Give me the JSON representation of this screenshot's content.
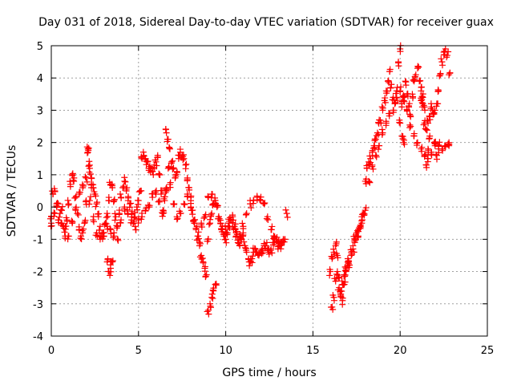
{
  "chart_data": {
    "type": "scatter",
    "title": "Day 031 of 2018, Sidereal Day-to-day VTEC variation (SDTVAR) for receiver guax",
    "xlabel": "GPS time / hours",
    "ylabel": "SDTVAR / TECUs",
    "xlim": [
      0,
      25
    ],
    "ylim": [
      -4,
      5
    ],
    "xticks": [
      "0",
      "5",
      "10",
      "15",
      "20",
      "25"
    ],
    "yticks": [
      "-4",
      "-3",
      "-2",
      "-1",
      "0",
      "1",
      "2",
      "3",
      "4",
      "5"
    ],
    "grid": true,
    "marker": "plus",
    "series": [
      {
        "name": "SDTVAR",
        "color": "#ff0000",
        "x": [
          0.0,
          0.1,
          0.2,
          0.3,
          0.4,
          0.5,
          0.6,
          0.7,
          0.8,
          0.9,
          1.0,
          1.1,
          1.2,
          1.3,
          1.4,
          1.5,
          1.6,
          1.7,
          1.8,
          1.9,
          2.0,
          2.1,
          2.2,
          2.3,
          2.4,
          2.5,
          2.6,
          2.7,
          2.8,
          2.9,
          3.0,
          3.1,
          3.2,
          3.3,
          3.4,
          3.5,
          3.6,
          3.7,
          3.8,
          3.9,
          4.0,
          4.1,
          4.2,
          4.3,
          4.4,
          4.5,
          4.6,
          4.7,
          4.8,
          4.9,
          5.0,
          5.1,
          5.2,
          5.3,
          5.4,
          5.5,
          5.6,
          5.7,
          5.8,
          5.9,
          6.0,
          6.1,
          6.2,
          6.3,
          6.4,
          6.5,
          6.6,
          6.7,
          6.8,
          6.9,
          7.0,
          7.1,
          7.2,
          7.3,
          7.4,
          7.5,
          7.6,
          7.7,
          7.8,
          7.9,
          8.0,
          8.1,
          8.2,
          8.3,
          8.4,
          8.5,
          8.6,
          8.7,
          8.8,
          8.9,
          9.0,
          9.1,
          9.2,
          9.3,
          9.4,
          9.5,
          9.6,
          9.7,
          9.8,
          9.9,
          10.0,
          10.1,
          10.2,
          10.3,
          10.4,
          10.5,
          10.6,
          10.7,
          10.8,
          10.9,
          11.0,
          11.1,
          11.2,
          11.3,
          11.4,
          11.5,
          11.6,
          11.7,
          11.8,
          11.9,
          12.0,
          12.1,
          12.2,
          12.3,
          12.4,
          12.5,
          12.6,
          12.7,
          12.8,
          12.9,
          13.0,
          13.1,
          13.2,
          13.3,
          13.4,
          0.0,
          0.2,
          0.4,
          0.6,
          0.8,
          1.0,
          1.2,
          1.4,
          1.6,
          1.8,
          2.0,
          2.2,
          2.4,
          2.6,
          2.8,
          3.0,
          3.2,
          3.4,
          3.6,
          3.8,
          4.0,
          4.2,
          4.4,
          4.6,
          4.8,
          5.0,
          5.2,
          5.4,
          5.6,
          5.8,
          6.0,
          6.2,
          6.4,
          6.6,
          6.8,
          7.0,
          7.2,
          7.4,
          7.6,
          7.8,
          8.0,
          8.2,
          8.4,
          8.6,
          8.8,
          9.0,
          9.2,
          9.4,
          9.6,
          9.8,
          10.0,
          10.2,
          10.4,
          10.6,
          10.8,
          11.0,
          11.2,
          11.4,
          11.6,
          11.8,
          12.0,
          12.2,
          12.4,
          12.6,
          12.8,
          13.0,
          13.2,
          2.1,
          2.2,
          2.3,
          3.2,
          3.3,
          3.4,
          3.5,
          6.6,
          6.7,
          9.0,
          9.1,
          9.2,
          9.3,
          9.4,
          13.5,
          16.0,
          16.1,
          16.2,
          16.3,
          16.4,
          16.5,
          16.6,
          16.7,
          16.8,
          16.9,
          17.0,
          17.1,
          17.2,
          17.3,
          17.4,
          17.5,
          17.6,
          17.7,
          17.8,
          17.9,
          18.0,
          18.1,
          18.2,
          18.3,
          18.4,
          18.5,
          18.6,
          18.7,
          18.8,
          18.9,
          19.0,
          19.1,
          19.2,
          19.3,
          19.4,
          19.5,
          19.6,
          19.7,
          19.8,
          19.9,
          20.0,
          20.1,
          20.2,
          20.3,
          20.4,
          20.5,
          20.6,
          20.7,
          20.8,
          20.9,
          21.0,
          21.1,
          21.2,
          21.3,
          21.4,
          21.5,
          21.6,
          21.7,
          21.8,
          21.9,
          22.0,
          22.1,
          22.2,
          22.3,
          22.4,
          22.5,
          22.6,
          22.7,
          22.8,
          16.1,
          16.2,
          16.3,
          16.4,
          16.5,
          16.6,
          16.7,
          16.8,
          16.9,
          17.0,
          17.2,
          17.4,
          17.6,
          17.8,
          18.0,
          18.2,
          18.4,
          18.6,
          18.8,
          19.0,
          19.2,
          19.4,
          19.6,
          19.8,
          20.0,
          20.2,
          20.4,
          20.6,
          20.8,
          21.0,
          21.2,
          21.4,
          21.6,
          21.8,
          22.0,
          22.2,
          22.4,
          22.6,
          22.8,
          20.0,
          20.1,
          20.2,
          21.5,
          21.6,
          21.7,
          22.0,
          22.1,
          22.2,
          22.8,
          21.3,
          21.4,
          21.2
        ],
        "y": [
          -0.3,
          0.4,
          0.5,
          0.1,
          -0.4,
          -0.2,
          -0.5,
          -0.6,
          -0.9,
          -0.4,
          0.1,
          0.7,
          1.0,
          0.9,
          0.3,
          -0.2,
          -0.7,
          -0.9,
          -0.8,
          -0.5,
          0.2,
          1.7,
          1.3,
          0.9,
          0.6,
          0.4,
          0.1,
          -0.3,
          -0.6,
          -0.9,
          -0.8,
          -0.5,
          -0.2,
          0.3,
          0.7,
          0.6,
          0.2,
          -0.3,
          -0.6,
          -0.2,
          0.3,
          0.6,
          0.8,
          0.5,
          0.2,
          0.1,
          -0.2,
          -0.5,
          -0.3,
          0.0,
          0.2,
          0.5,
          1.5,
          1.6,
          1.5,
          1.4,
          1.2,
          1.2,
          1.1,
          1.3,
          1.4,
          1.6,
          1.0,
          0.4,
          -0.1,
          0.2,
          0.6,
          1.2,
          1.8,
          1.4,
          1.2,
          0.9,
          1.1,
          1.5,
          1.7,
          1.6,
          1.5,
          1.3,
          0.9,
          0.6,
          0.3,
          -0.1,
          -0.4,
          -0.7,
          -0.9,
          -1.2,
          -1.5,
          -1.7,
          -1.9,
          -2.1,
          -1.0,
          -0.5,
          -0.2,
          0.1,
          0.2,
          0.0,
          -0.3,
          -0.5,
          -0.7,
          -0.9,
          -1.0,
          -0.8,
          -0.6,
          -0.4,
          -0.3,
          -0.6,
          -0.9,
          -1.1,
          -1.2,
          -1.0,
          -0.8,
          -1.2,
          -1.4,
          -1.6,
          -1.7,
          -1.6,
          -1.4,
          -1.3,
          -1.4,
          -1.5,
          -1.4,
          -1.3,
          -1.2,
          -1.2,
          -1.3,
          -1.4,
          -1.3,
          -1.1,
          -1.0,
          -1.0,
          -1.1,
          -1.2,
          -1.1,
          -1.0,
          -1.0,
          -0.5,
          -0.2,
          0.1,
          -0.1,
          -0.6,
          -0.9,
          -0.5,
          -0.1,
          0.4,
          0.6,
          0.9,
          0.2,
          -0.4,
          -0.8,
          -1.0,
          -0.8,
          -0.6,
          -0.7,
          -0.9,
          -1.0,
          -0.4,
          0.0,
          -0.2,
          -0.4,
          -0.6,
          -0.4,
          -0.3,
          -0.1,
          0.0,
          0.3,
          0.4,
          0.2,
          -0.2,
          0.5,
          0.7,
          0.1,
          -0.3,
          -0.2,
          0.1,
          0.4,
          0.0,
          -0.5,
          -0.9,
          -0.5,
          -0.3,
          0.3,
          0.4,
          0.1,
          -0.3,
          -0.6,
          -0.7,
          -0.5,
          -0.6,
          -0.8,
          -0.9,
          -0.6,
          -0.2,
          0.1,
          0.2,
          0.3,
          0.2,
          0.1,
          -0.3,
          -0.7,
          -1.0,
          -1.3,
          -1.1,
          1.8,
          1.2,
          0.6,
          -1.7,
          -2.0,
          -1.9,
          -1.7,
          2.3,
          2.1,
          -3.2,
          -3.0,
          -2.8,
          -2.6,
          -2.4,
          -0.2,
          -2.0,
          -1.6,
          -1.4,
          -1.2,
          -1.5,
          -2.2,
          -2.6,
          -2.9,
          -2.4,
          -2.0,
          -1.6,
          -1.8,
          -1.4,
          -1.3,
          -1.0,
          -0.8,
          -0.7,
          -0.6,
          -0.3,
          -0.2,
          0.8,
          1.2,
          1.4,
          1.5,
          1.7,
          1.9,
          2.1,
          2.3,
          2.7,
          2.6,
          3.0,
          3.3,
          3.6,
          3.9,
          4.2,
          3.8,
          3.4,
          3.2,
          3.6,
          4.5,
          4.9,
          3.2,
          3.4,
          3.9,
          3.5,
          3.1,
          2.8,
          3.5,
          3.9,
          4.1,
          4.3,
          3.9,
          3.6,
          3.2,
          2.6,
          2.4,
          2.6,
          2.8,
          3.1,
          2.9,
          3.0,
          3.2,
          3.6,
          4.1,
          4.5,
          4.8,
          4.9,
          4.7,
          4.1,
          -3.1,
          -2.8,
          -2.3,
          -2.0,
          -2.5,
          -2.7,
          -2.4,
          -2.1,
          -1.9,
          -1.7,
          -1.5,
          -1.1,
          -0.9,
          -0.5,
          -0.1,
          0.8,
          1.3,
          1.6,
          1.9,
          2.3,
          2.6,
          2.9,
          3.0,
          3.4,
          3.6,
          3.3,
          3.0,
          2.5,
          2.2,
          2.0,
          1.8,
          1.6,
          1.5,
          1.7,
          2.0,
          1.9,
          1.8,
          1.9,
          2.0,
          2.6,
          2.2,
          2.0,
          1.3,
          1.8,
          2.2,
          1.9,
          1.6,
          1.8,
          1.9,
          3.4,
          3.1,
          3.3
        ]
      }
    ]
  }
}
